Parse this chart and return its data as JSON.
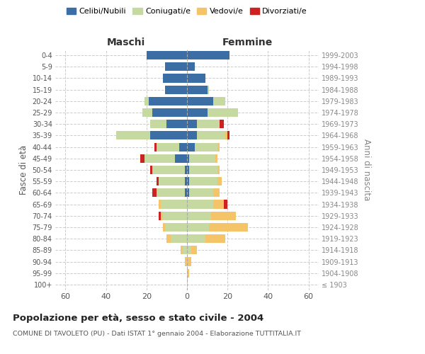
{
  "age_groups": [
    "100+",
    "95-99",
    "90-94",
    "85-89",
    "80-84",
    "75-79",
    "70-74",
    "65-69",
    "60-64",
    "55-59",
    "50-54",
    "45-49",
    "40-44",
    "35-39",
    "30-34",
    "25-29",
    "20-24",
    "15-19",
    "10-14",
    "5-9",
    "0-4"
  ],
  "birth_years": [
    "≤ 1903",
    "1904-1908",
    "1909-1913",
    "1914-1918",
    "1919-1923",
    "1924-1928",
    "1929-1933",
    "1934-1938",
    "1939-1943",
    "1944-1948",
    "1949-1953",
    "1954-1958",
    "1959-1963",
    "1964-1968",
    "1969-1973",
    "1974-1978",
    "1979-1983",
    "1984-1988",
    "1989-1993",
    "1994-1998",
    "1999-2003"
  ],
  "males": {
    "celibi": [
      0,
      0,
      0,
      0,
      0,
      0,
      0,
      0,
      1,
      1,
      1,
      6,
      4,
      18,
      10,
      17,
      19,
      11,
      12,
      11,
      20
    ],
    "coniugati": [
      0,
      0,
      0,
      2,
      8,
      11,
      12,
      13,
      14,
      13,
      16,
      15,
      11,
      17,
      8,
      5,
      2,
      0,
      0,
      0,
      0
    ],
    "vedovi": [
      0,
      0,
      1,
      1,
      2,
      1,
      1,
      1,
      0,
      0,
      0,
      0,
      0,
      0,
      0,
      0,
      0,
      0,
      0,
      0,
      0
    ],
    "divorziati": [
      0,
      0,
      0,
      0,
      0,
      0,
      1,
      0,
      2,
      1,
      1,
      2,
      1,
      0,
      0,
      0,
      0,
      0,
      0,
      0,
      0
    ]
  },
  "females": {
    "nubili": [
      0,
      0,
      0,
      0,
      0,
      0,
      0,
      0,
      1,
      1,
      1,
      1,
      4,
      5,
      5,
      10,
      13,
      10,
      9,
      4,
      21
    ],
    "coniugate": [
      0,
      0,
      0,
      2,
      9,
      11,
      12,
      13,
      12,
      14,
      14,
      13,
      11,
      14,
      11,
      15,
      6,
      1,
      0,
      0,
      0
    ],
    "vedove": [
      0,
      1,
      2,
      3,
      10,
      19,
      12,
      5,
      3,
      2,
      1,
      1,
      1,
      1,
      0,
      0,
      0,
      0,
      0,
      0,
      0
    ],
    "divorziate": [
      0,
      0,
      0,
      0,
      0,
      0,
      0,
      2,
      0,
      0,
      0,
      0,
      0,
      1,
      2,
      0,
      0,
      0,
      0,
      0,
      0
    ]
  },
  "colors": {
    "celibi": "#3a6ea5",
    "coniugati": "#c5d9a0",
    "vedovi": "#f5c469",
    "divorziati": "#cc2222"
  },
  "xlim": 65,
  "title": "Popolazione per età, sesso e stato civile - 2004",
  "subtitle": "COMUNE DI TAVOLETO (PU) - Dati ISTAT 1° gennaio 2004 - Elaborazione TUTTITALIA.IT",
  "ylabel_left": "Fasce di età",
  "ylabel_right": "Anni di nascita",
  "xlabel_left": "Maschi",
  "xlabel_right": "Femmine"
}
